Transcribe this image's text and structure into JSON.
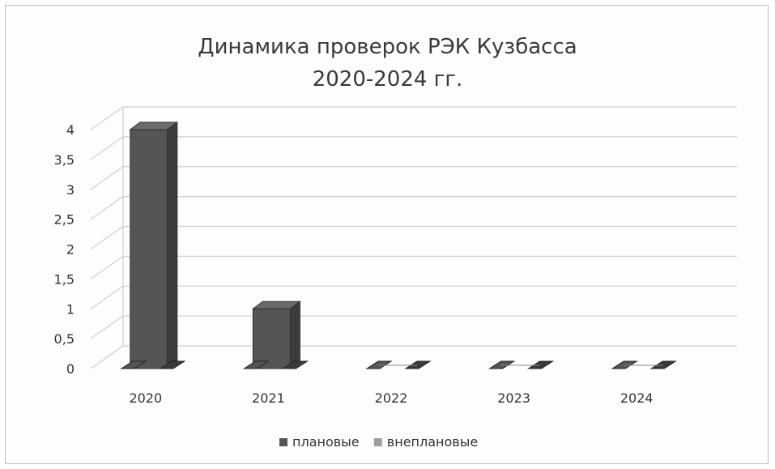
{
  "chart_data": {
    "type": "bar",
    "title": "Динамика проверок РЭК Кузбасса",
    "subtitle": "2020-2024 гг.",
    "categories": [
      "2020",
      "2021",
      "2022",
      "2023",
      "2024"
    ],
    "series": [
      {
        "name": "плановые",
        "values": [
          4,
          1,
          0,
          0,
          0
        ],
        "color": "#555555"
      },
      {
        "name": "внеплановые",
        "values": [
          0,
          0,
          0,
          0,
          0
        ],
        "color": "#9e9e9e"
      }
    ],
    "ylim": [
      0,
      4
    ],
    "yticks": [
      "0",
      "0,5",
      "1",
      "1,5",
      "2",
      "2,5",
      "3",
      "3,5",
      "4"
    ],
    "ytick_values": [
      0,
      0.5,
      1,
      1.5,
      2,
      2.5,
      3,
      3.5,
      4
    ],
    "grid": true,
    "legend": "bottom",
    "style": "3d-column"
  }
}
